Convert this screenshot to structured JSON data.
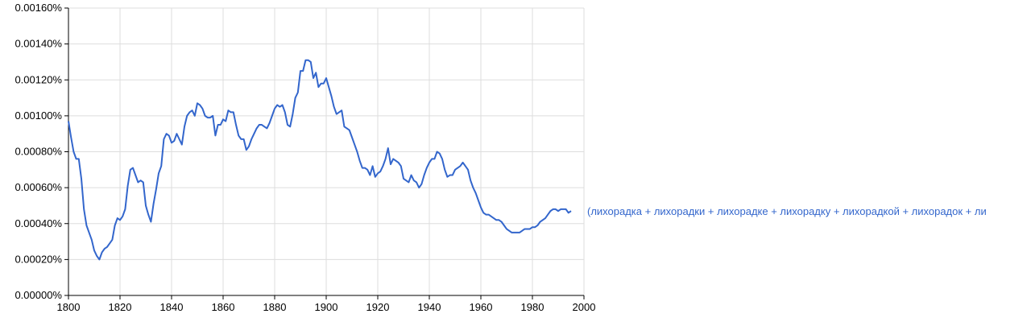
{
  "chart_data": {
    "type": "line",
    "xlim": [
      1800,
      2000
    ],
    "ylim": [
      0,
      0.0016
    ],
    "grid": true,
    "x_ticks": [
      1800,
      1820,
      1840,
      1860,
      1880,
      1900,
      1920,
      1940,
      1960,
      1980,
      2000
    ],
    "y_ticks": [
      0,
      0.0002,
      0.0004,
      0.0006,
      0.0008,
      0.001,
      0.0012,
      0.0014,
      0.0016
    ],
    "x_tick_labels": [
      "1800",
      "1820",
      "1840",
      "1860",
      "1880",
      "1900",
      "1920",
      "1940",
      "1960",
      "1980",
      "2000"
    ],
    "y_tick_labels": [
      "0.00000%",
      "0.00020%",
      "0.00040%",
      "0.00060%",
      "0.00080%",
      "0.00100%",
      "0.00120%",
      "0.00140%",
      "0.00160%"
    ],
    "series": [
      {
        "name": "(лихорадка + лихорадки + лихорадке + лихорадку + лихорадкой + лихорадок + ли",
        "color": "#3366cc",
        "points": [
          [
            1800,
            0.00097
          ],
          [
            1801,
            0.00088
          ],
          [
            1802,
            0.0008
          ],
          [
            1803,
            0.00076
          ],
          [
            1804,
            0.00076
          ],
          [
            1805,
            0.00065
          ],
          [
            1806,
            0.00048
          ],
          [
            1807,
            0.00039
          ],
          [
            1808,
            0.00035
          ],
          [
            1809,
            0.00031
          ],
          [
            1810,
            0.00025
          ],
          [
            1811,
            0.00022
          ],
          [
            1812,
            0.0002
          ],
          [
            1813,
            0.00024
          ],
          [
            1814,
            0.00026
          ],
          [
            1815,
            0.00027
          ],
          [
            1816,
            0.00029
          ],
          [
            1817,
            0.00031
          ],
          [
            1818,
            0.00039
          ],
          [
            1819,
            0.00043
          ],
          [
            1820,
            0.00042
          ],
          [
            1821,
            0.00044
          ],
          [
            1822,
            0.00048
          ],
          [
            1823,
            0.00061
          ],
          [
            1824,
            0.0007
          ],
          [
            1825,
            0.00071
          ],
          [
            1826,
            0.00067
          ],
          [
            1827,
            0.00063
          ],
          [
            1828,
            0.00064
          ],
          [
            1829,
            0.00063
          ],
          [
            1830,
            0.0005
          ],
          [
            1831,
            0.00045
          ],
          [
            1832,
            0.00041
          ],
          [
            1833,
            0.00051
          ],
          [
            1834,
            0.00059
          ],
          [
            1835,
            0.00068
          ],
          [
            1836,
            0.00072
          ],
          [
            1837,
            0.00087
          ],
          [
            1838,
            0.0009
          ],
          [
            1839,
            0.00089
          ],
          [
            1840,
            0.00085
          ],
          [
            1841,
            0.00086
          ],
          [
            1842,
            0.0009
          ],
          [
            1843,
            0.00087
          ],
          [
            1844,
            0.00084
          ],
          [
            1845,
            0.00094
          ],
          [
            1846,
            0.001
          ],
          [
            1847,
            0.00102
          ],
          [
            1848,
            0.00103
          ],
          [
            1849,
            0.001
          ],
          [
            1850,
            0.00107
          ],
          [
            1851,
            0.00106
          ],
          [
            1852,
            0.00104
          ],
          [
            1853,
            0.001
          ],
          [
            1854,
            0.00099
          ],
          [
            1855,
            0.00099
          ],
          [
            1856,
            0.001
          ],
          [
            1857,
            0.00089
          ],
          [
            1858,
            0.00095
          ],
          [
            1859,
            0.00095
          ],
          [
            1860,
            0.00098
          ],
          [
            1861,
            0.00097
          ],
          [
            1862,
            0.00103
          ],
          [
            1863,
            0.00102
          ],
          [
            1864,
            0.00102
          ],
          [
            1865,
            0.00095
          ],
          [
            1866,
            0.00089
          ],
          [
            1867,
            0.00087
          ],
          [
            1868,
            0.00087
          ],
          [
            1869,
            0.00081
          ],
          [
            1870,
            0.00083
          ],
          [
            1871,
            0.00087
          ],
          [
            1872,
            0.0009
          ],
          [
            1873,
            0.00093
          ],
          [
            1874,
            0.00095
          ],
          [
            1875,
            0.00095
          ],
          [
            1876,
            0.00094
          ],
          [
            1877,
            0.00093
          ],
          [
            1878,
            0.00096
          ],
          [
            1879,
            0.001
          ],
          [
            1880,
            0.00104
          ],
          [
            1881,
            0.00106
          ],
          [
            1882,
            0.00105
          ],
          [
            1883,
            0.00106
          ],
          [
            1884,
            0.00102
          ],
          [
            1885,
            0.00095
          ],
          [
            1886,
            0.00094
          ],
          [
            1887,
            0.00101
          ],
          [
            1888,
            0.0011
          ],
          [
            1889,
            0.00113
          ],
          [
            1890,
            0.00125
          ],
          [
            1891,
            0.00125
          ],
          [
            1892,
            0.00131
          ],
          [
            1893,
            0.00131
          ],
          [
            1894,
            0.0013
          ],
          [
            1895,
            0.00121
          ],
          [
            1896,
            0.00124
          ],
          [
            1897,
            0.00116
          ],
          [
            1898,
            0.00118
          ],
          [
            1899,
            0.00118
          ],
          [
            1900,
            0.00121
          ],
          [
            1901,
            0.00116
          ],
          [
            1902,
            0.00111
          ],
          [
            1903,
            0.00105
          ],
          [
            1904,
            0.00101
          ],
          [
            1905,
            0.00102
          ],
          [
            1906,
            0.00103
          ],
          [
            1907,
            0.00094
          ],
          [
            1908,
            0.00093
          ],
          [
            1909,
            0.00092
          ],
          [
            1910,
            0.00088
          ],
          [
            1911,
            0.00084
          ],
          [
            1912,
            0.0008
          ],
          [
            1913,
            0.00075
          ],
          [
            1914,
            0.00071
          ],
          [
            1915,
            0.00071
          ],
          [
            1916,
            0.0007
          ],
          [
            1917,
            0.00067
          ],
          [
            1918,
            0.00072
          ],
          [
            1919,
            0.00066
          ],
          [
            1920,
            0.00068
          ],
          [
            1921,
            0.00069
          ],
          [
            1922,
            0.00072
          ],
          [
            1923,
            0.00076
          ],
          [
            1924,
            0.00082
          ],
          [
            1925,
            0.00073
          ],
          [
            1926,
            0.00076
          ],
          [
            1927,
            0.00075
          ],
          [
            1928,
            0.00074
          ],
          [
            1929,
            0.00072
          ],
          [
            1930,
            0.00065
          ],
          [
            1931,
            0.00064
          ],
          [
            1932,
            0.00063
          ],
          [
            1933,
            0.00067
          ],
          [
            1934,
            0.00064
          ],
          [
            1935,
            0.00063
          ],
          [
            1936,
            0.0006
          ],
          [
            1937,
            0.00062
          ],
          [
            1938,
            0.00067
          ],
          [
            1939,
            0.00071
          ],
          [
            1940,
            0.00074
          ],
          [
            1941,
            0.00076
          ],
          [
            1942,
            0.00076
          ],
          [
            1943,
            0.0008
          ],
          [
            1944,
            0.00079
          ],
          [
            1945,
            0.00076
          ],
          [
            1946,
            0.0007
          ],
          [
            1947,
            0.00066
          ],
          [
            1948,
            0.00067
          ],
          [
            1949,
            0.00067
          ],
          [
            1950,
            0.0007
          ],
          [
            1951,
            0.00071
          ],
          [
            1952,
            0.00072
          ],
          [
            1953,
            0.00074
          ],
          [
            1954,
            0.00072
          ],
          [
            1955,
            0.0007
          ],
          [
            1956,
            0.00064
          ],
          [
            1957,
            0.0006
          ],
          [
            1958,
            0.00057
          ],
          [
            1959,
            0.00053
          ],
          [
            1960,
            0.00049
          ],
          [
            1961,
            0.00046
          ],
          [
            1962,
            0.00045
          ],
          [
            1963,
            0.00045
          ],
          [
            1964,
            0.00044
          ],
          [
            1965,
            0.00043
          ],
          [
            1966,
            0.00042
          ],
          [
            1967,
            0.00042
          ],
          [
            1968,
            0.00041
          ],
          [
            1969,
            0.00039
          ],
          [
            1970,
            0.00037
          ],
          [
            1971,
            0.00036
          ],
          [
            1972,
            0.00035
          ],
          [
            1973,
            0.00035
          ],
          [
            1974,
            0.00035
          ],
          [
            1975,
            0.00035
          ],
          [
            1976,
            0.00036
          ],
          [
            1977,
            0.00037
          ],
          [
            1978,
            0.00037
          ],
          [
            1979,
            0.00037
          ],
          [
            1980,
            0.00038
          ],
          [
            1981,
            0.00038
          ],
          [
            1982,
            0.00039
          ],
          [
            1983,
            0.00041
          ],
          [
            1984,
            0.00042
          ],
          [
            1985,
            0.00043
          ],
          [
            1986,
            0.00045
          ],
          [
            1987,
            0.00047
          ],
          [
            1988,
            0.00048
          ],
          [
            1989,
            0.00048
          ],
          [
            1990,
            0.00047
          ],
          [
            1991,
            0.00048
          ],
          [
            1992,
            0.00048
          ],
          [
            1993,
            0.00048
          ],
          [
            1994,
            0.00046
          ],
          [
            1995,
            0.00047
          ]
        ]
      }
    ]
  }
}
